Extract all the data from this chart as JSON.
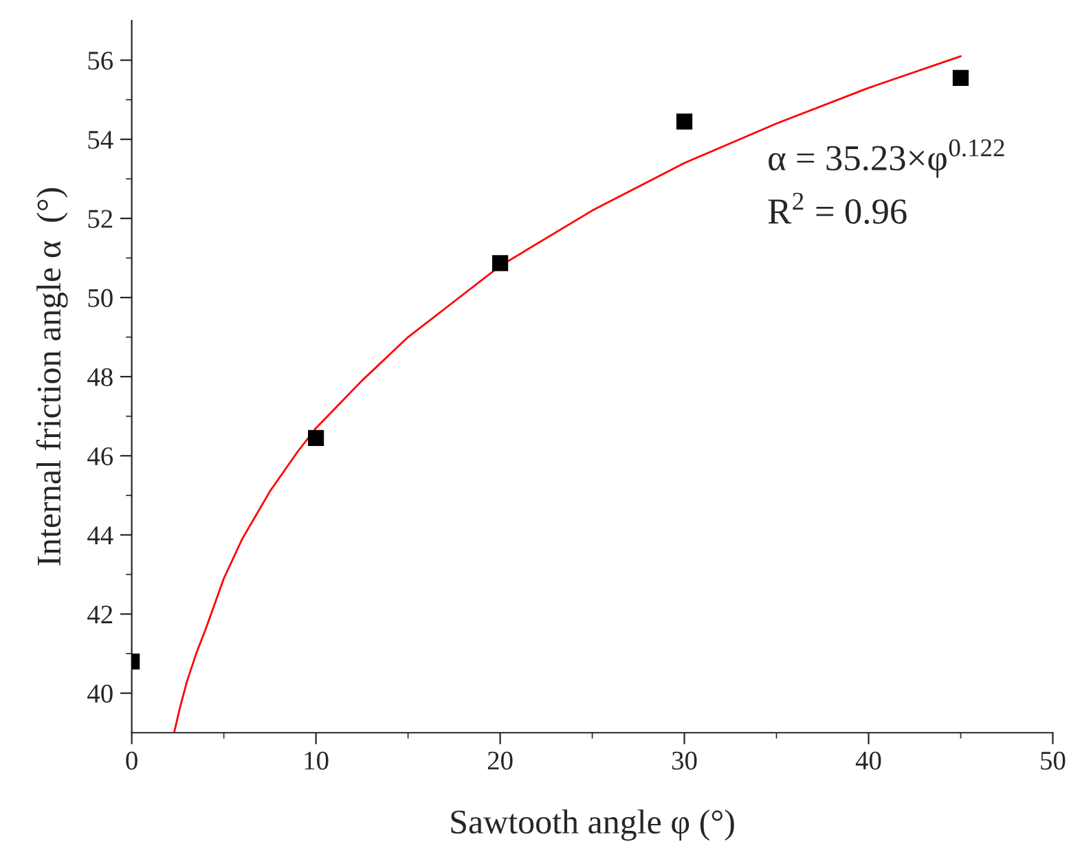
{
  "chart_data": {
    "type": "scatter",
    "xlabel": "Sawtooth angle φ (°)",
    "ylabel": "Internal friction angle α  (°)",
    "xlim": [
      0,
      50
    ],
    "ylim": [
      39,
      57
    ],
    "xticks": [
      0,
      {
        "value": 5,
        "label": null
      },
      10,
      {
        "value": 15,
        "label": null
      },
      20,
      {
        "value": 25,
        "label": null
      },
      30,
      {
        "value": 35,
        "label": null
      },
      40,
      {
        "value": 45,
        "label": null
      },
      50
    ],
    "yticks": [
      40,
      {
        "value": 41,
        "label": null
      },
      42,
      {
        "value": 43,
        "label": null
      },
      44,
      {
        "value": 45,
        "label": null
      },
      46,
      {
        "value": 47,
        "label": null
      },
      48,
      {
        "value": 49,
        "label": null
      },
      50,
      {
        "value": 51,
        "label": null
      },
      52,
      {
        "value": 53,
        "label": null
      },
      54,
      {
        "value": 55,
        "label": null
      },
      56
    ],
    "grid": false,
    "legend": false,
    "series": [
      {
        "marker": "square",
        "color": "#000000",
        "x": [
          0,
          10,
          20,
          30,
          45
        ],
        "values": [
          40.8,
          46.45,
          50.87,
          54.45,
          55.55
        ]
      },
      {
        "type": "line",
        "marker": "none",
        "color": "#ff0000",
        "x": [
          2.3,
          2.6,
          3,
          3.5,
          4,
          5,
          6,
          7.5,
          9,
          10,
          12.5,
          15,
          17.5,
          20,
          25,
          30,
          35,
          40,
          45
        ],
        "values": [
          39.0,
          39.6,
          40.3,
          41.0,
          41.6,
          42.9,
          43.9,
          45.1,
          46.1,
          46.7,
          47.9,
          49.0,
          49.9,
          50.8,
          52.2,
          53.4,
          54.4,
          55.3,
          56.1
        ]
      }
    ],
    "annotations": [
      "α = 35.23×φ$^{0.122}$",
      "R$^{2}$ = 0.96"
    ]
  }
}
